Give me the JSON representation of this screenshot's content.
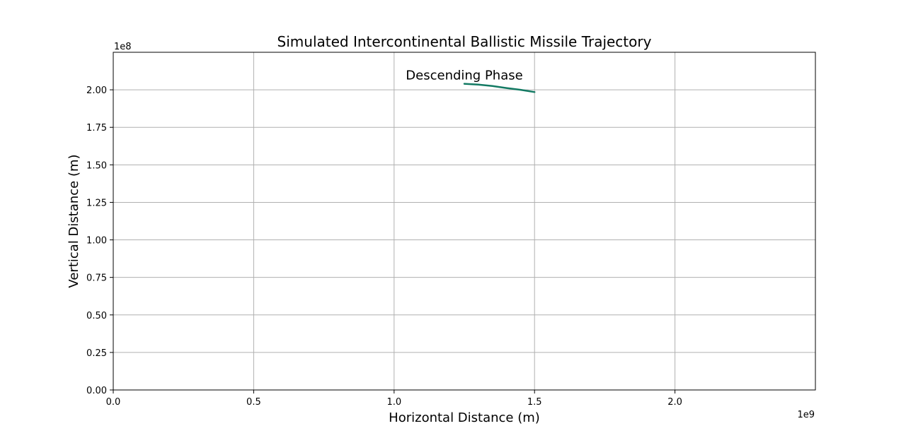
{
  "chart_data": {
    "type": "line",
    "title": "Simulated Intercontinental Ballistic Missile Trajectory",
    "xlabel": "Horizontal Distance (m)",
    "ylabel": "Vertical Distance (m)",
    "x_offset_text": "1e9",
    "y_offset_text": "1e8",
    "xlim": [
      0,
      2.5
    ],
    "ylim": [
      0,
      2.25
    ],
    "x_ticks": [
      {
        "value": 0.0,
        "label": "0.0"
      },
      {
        "value": 0.5,
        "label": "0.5"
      },
      {
        "value": 1.0,
        "label": "1.0"
      },
      {
        "value": 1.5,
        "label": "1.5"
      },
      {
        "value": 2.0,
        "label": "2.0"
      }
    ],
    "y_ticks": [
      {
        "value": 0.0,
        "label": "0.00"
      },
      {
        "value": 0.25,
        "label": "0.25"
      },
      {
        "value": 0.5,
        "label": "0.50"
      },
      {
        "value": 0.75,
        "label": "0.75"
      },
      {
        "value": 1.0,
        "label": "1.00"
      },
      {
        "value": 1.25,
        "label": "1.25"
      },
      {
        "value": 1.5,
        "label": "1.50"
      },
      {
        "value": 1.75,
        "label": "1.75"
      },
      {
        "value": 2.0,
        "label": "2.00"
      }
    ],
    "grid": true,
    "series": [
      {
        "color": "#137a63",
        "x": [
          1.25,
          1.3,
          1.35,
          1.4,
          1.45,
          1.5
        ],
        "y": [
          2.04,
          2.035,
          2.025,
          2.012,
          2.0,
          1.985
        ]
      }
    ],
    "annotations": [
      {
        "text": "Descending Phase",
        "x": 1.25,
        "y": 2.04
      }
    ],
    "colors": {
      "grid": "#b0b0b0",
      "axes": "#000000",
      "line": "#137a63"
    }
  }
}
